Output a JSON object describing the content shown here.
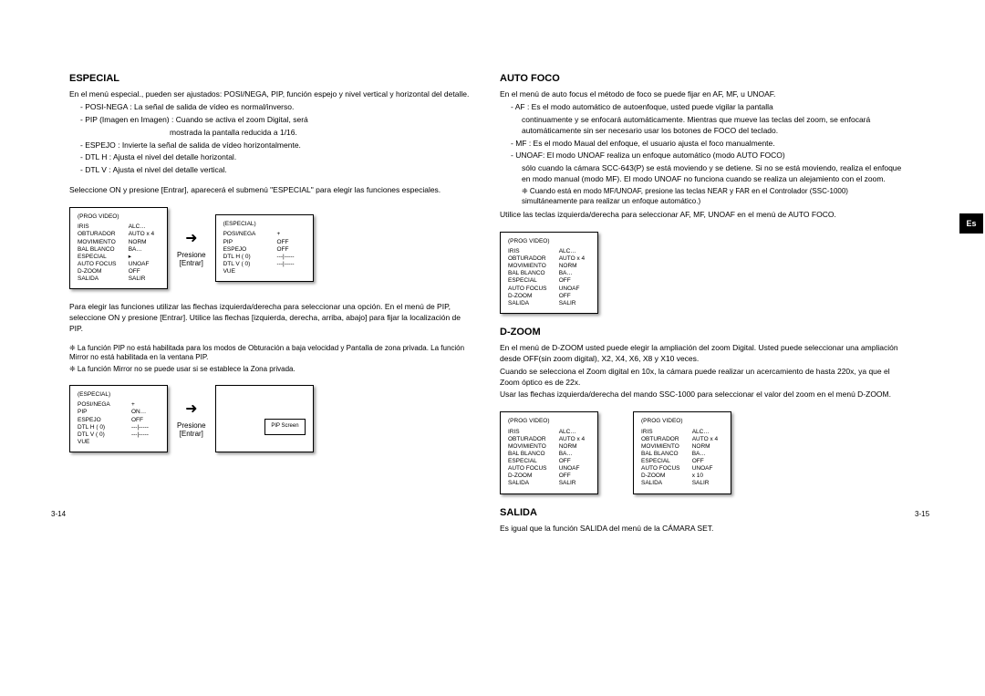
{
  "left": {
    "sec1": {
      "title": "ESPECIAL",
      "p1": "En el menú especial., pueden ser ajustados: POSI/NEGA, PIP, función espejo y nivel vertical y horizontal del detalle.",
      "b1": "- POSI-NEGA : La señal de salida de vídeo es normal/inverso.",
      "b2": "- PIP (Imagen en Imagen) : Cuando se activa el zoom Digital, será",
      "b2b": "mostrada la pantalla reducida a 1/16.",
      "b3": "- ESPEJO : Invierte la señal de salida de vídeo horizontalmente.",
      "b4": "- DTL H : Ajusta el nivel del detalle horizontal.",
      "b5": "- DTL V : Ajusta el nivel del detalle vertical.",
      "p2": "Seleccione ON y presione [Entrar], aparecerá el submenú \"ESPECIAL\" para elegir las funciones especiales.",
      "arrow1": {
        "press": "Presione",
        "enter": "[Entrar]"
      },
      "p3": "Para elegir las funciones utilizar las flechas izquierda/derecha para seleccionar una opción. En el menú de PIP, seleccione ON y presione [Entrar]. Utilice las flechas [izquierda, derecha, arriba, abajo] para fijar la localización de PIP.",
      "n1": "❈ La función PIP no está habilitada para los modos de Obturación a baja velocidad y Pantalla de zona privada. La función Mirror no está habilitada en la ventana PIP.",
      "n2": "❈ La función Mirror no se puede usar si se establece la Zona privada.",
      "pip": "PIP Screen",
      "osd_prog": {
        "title": "(PROG VIDEO)",
        "rows": [
          [
            "IRIS",
            "ALC…"
          ],
          [
            "OBTURADOR",
            "AUTO x 4"
          ],
          [
            "MOVIMIENTO",
            "NORM"
          ],
          [
            "BAL BLANCO",
            "BA…"
          ],
          [
            "ESPECIAL",
            "▸"
          ],
          [
            "AUTO FOCUS",
            "UNOAF"
          ],
          [
            "D-ZOOM",
            "OFF"
          ],
          [
            "SALIDA",
            "SALIR"
          ]
        ]
      },
      "osd_esp": {
        "title": "(ESPECIAL)",
        "rows": [
          [
            "POSI/NEGA",
            "+"
          ],
          [
            "PIP",
            "OFF"
          ],
          [
            "ESPEJO",
            "OFF"
          ],
          [
            "DTL H   ( 0)",
            "---|-----"
          ],
          [
            "DTL V   ( 0)",
            "---|-----"
          ],
          [
            "VUE",
            ""
          ]
        ]
      },
      "osd_esp2": {
        "title": "(ESPECIAL)",
        "rows": [
          [
            "POSI/NEGA",
            "+"
          ],
          [
            "PIP",
            "ON…"
          ],
          [
            "ESPEJO",
            "OFF"
          ],
          [
            "DTL H   ( 0)",
            "---|-----"
          ],
          [
            "DTL V   ( 0)",
            "---|-----"
          ],
          [
            "VUE",
            ""
          ]
        ]
      }
    },
    "footer": "3-14"
  },
  "right": {
    "lang": "Es",
    "sec1": {
      "title": "AUTO FOCO",
      "p1": "En el menú de auto focus el método de foco se puede fijar en AF, MF, u UNOAF.",
      "b1": "- AF : Es el modo automático de autoenfoque, usted puede vigilar la pantalla",
      "b1b": "continuamente y se enfocará automáticamente. Mientras que mueve las teclas del zoom, se enfocará automáticamente sin ser necesario usar los botones de FOCO del teclado.",
      "b2": "- MF : Es el modo Maual del enfoque, el usuario ajusta el foco manualmente.",
      "b3": "- UNOAF: El modo UNOAF realiza un enfoque automático (modo AUTO FOCO)",
      "b3b": "sólo cuando la cámara SCC-643(P) se está moviendo y se detiene. Si no se está moviendo, realiza el enfoque en modo manual (modo MF). El modo UNOAF no funciona cuando se realiza un alejamiento con el zoom.",
      "n1": "❈ Cuando está en modo MF/UNOAF, presione las teclas NEAR y FAR en el Controlador (SSC-1000) simultáneamente para realizar un enfoque automático.)",
      "p2": "Utilice las teclas izquierda/derecha para seleccionar AF, MF, UNOAF en el menú de AUTO FOCO.",
      "osd": {
        "title": "(PROG VIDEO)",
        "rows": [
          [
            "IRIS",
            "ALC…"
          ],
          [
            "OBTURADOR",
            "AUTO x 4"
          ],
          [
            "MOVIMIENTO",
            "NORM"
          ],
          [
            "BAL BLANCO",
            "BA…"
          ],
          [
            "ESPECIAL",
            "OFF"
          ],
          [
            "AUTO FOCUS",
            "UNOAF"
          ],
          [
            "D-ZOOM",
            "OFF"
          ],
          [
            "SALIDA",
            "SALIR"
          ]
        ]
      }
    },
    "sec2": {
      "title": "D-ZOOM",
      "p1": "En el menú de D-ZOOM usted puede elegir la ampliación del zoom Digital. Usted puede seleccionar una ampliación desde OFF(sin zoom digital), X2, X4, X6, X8 y X10 veces.",
      "p2": "Cuando se selecciona el Zoom digital en 10x, la cámara puede realizar un acercamiento de hasta  220x, ya que el Zoom óptico es de 22x.",
      "p3": "Usar las flechas izquierda/derecha del mando SSC-1000 para seleccionar el valor del zoom en el menú D-ZOOM.",
      "osdA": {
        "title": "(PROG VIDEO)",
        "rows": [
          [
            "IRIS",
            "ALC…"
          ],
          [
            "OBTURADOR",
            "AUTO x 4"
          ],
          [
            "MOVIMIENTO",
            "NORM"
          ],
          [
            "BAL BLANCO",
            "BA…"
          ],
          [
            "ESPECIAL",
            "OFF"
          ],
          [
            "AUTO FOCUS",
            "UNOAF"
          ],
          [
            "D-ZOOM",
            "OFF"
          ],
          [
            "SALIDA",
            "SALIR"
          ]
        ]
      },
      "osdB": {
        "title": "(PROG VIDEO)",
        "rows": [
          [
            "IRIS",
            "ALC…"
          ],
          [
            "OBTURADOR",
            "AUTO x 4"
          ],
          [
            "MOVIMIENTO",
            "NORM"
          ],
          [
            "BAL BLANCO",
            "BA…"
          ],
          [
            "ESPECIAL",
            "OFF"
          ],
          [
            "AUTO FOCUS",
            "UNOAF"
          ],
          [
            "D-ZOOM",
            "x 10"
          ],
          [
            "SALIDA",
            "SALIR"
          ]
        ]
      }
    },
    "sec3": {
      "title": "SALIDA",
      "p1": "Es igual que la función SALIDA del menú de la CÁMARA SET."
    },
    "footer": "3-15"
  }
}
